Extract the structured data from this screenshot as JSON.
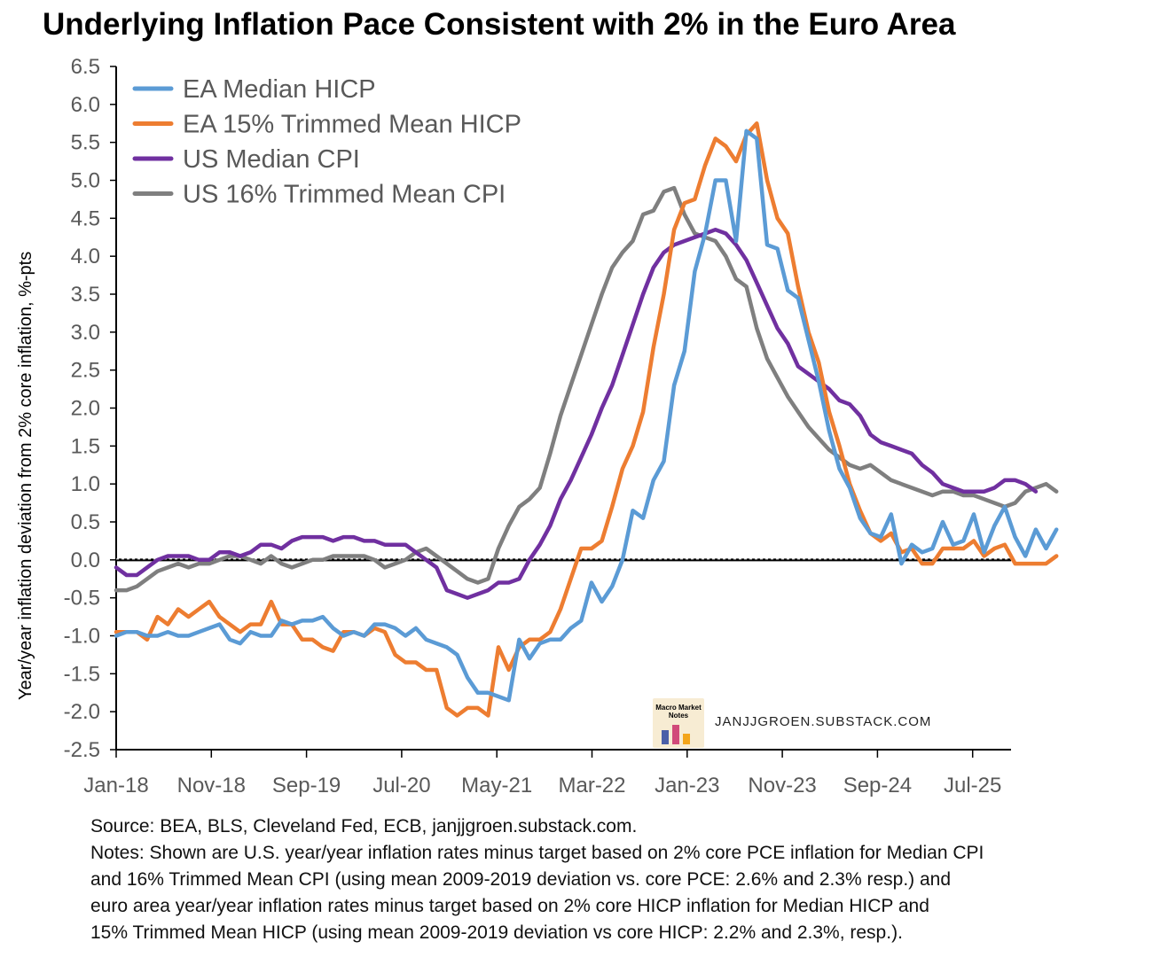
{
  "title": "Underlying Inflation Pace Consistent with 2% in the Euro Area",
  "watermark": {
    "badge_text": "Macro Market Notes",
    "site": "JANJJGROEN.SUBSTACK.COM"
  },
  "notes": {
    "source": "Source: BEA, BLS, Cleveland Fed, ECB, janjjgroen.substack.com.",
    "line1": "Notes: Shown are U.S. year/year inflation rates minus target based on 2% core PCE inflation for Median CPI",
    "line2": "and 16% Trimmed Mean CPI (using mean 2009-2019 deviation vs. core PCE: 2.6% and 2.3% resp.) and",
    "line3": "euro area year/year inflation rates minus target based on 2% core HICP inflation for Median HICP and",
    "line4": "15% Trimmed Mean HICP (using mean 2009-2019 deviation vs core HICP: 2.2% and 2.3%, resp.)."
  },
  "chart_data": {
    "type": "line",
    "title": "Underlying Inflation Pace Consistent with 2% in the Euro Area",
    "xlabel": "",
    "ylabel": "Year/year inflation deviation from 2% core inflation, %-pts",
    "ylim": [
      -2.5,
      6.5
    ],
    "y_ticks": [
      "6.5",
      "6.0",
      "5.5",
      "5.0",
      "4.5",
      "4.0",
      "3.5",
      "3.0",
      "2.5",
      "2.0",
      "1.5",
      "1.0",
      "0.5",
      "0.0",
      "-0.5",
      "-1.0",
      "-1.5",
      "-2.0",
      "-2.5"
    ],
    "x_ticks": [
      "Jan-18",
      "Nov-18",
      "Sep-19",
      "Jul-20",
      "May-21",
      "Mar-22",
      "Jan-23",
      "Nov-23",
      "Sep-24",
      "Jul-25"
    ],
    "x_start": "Jan-18",
    "x_end": "Oct-25",
    "grid": false,
    "legend_position": "top-left",
    "zero_line": true,
    "series": [
      {
        "name": "EA Median HICP",
        "color": "#5b9bd5",
        "values": [
          -1.0,
          -0.95,
          -0.95,
          -1.0,
          -1.0,
          -0.95,
          -1.0,
          -1.0,
          -0.95,
          -0.9,
          -0.85,
          -1.05,
          -1.1,
          -0.95,
          -1.0,
          -1.0,
          -0.8,
          -0.85,
          -0.8,
          -0.8,
          -0.75,
          -0.9,
          -1.0,
          -0.95,
          -1.0,
          -0.85,
          -0.85,
          -0.9,
          -1.0,
          -0.9,
          -1.05,
          -1.1,
          -1.15,
          -1.25,
          -1.55,
          -1.75,
          -1.75,
          -1.8,
          -1.85,
          -1.05,
          -1.3,
          -1.1,
          -1.05,
          -1.05,
          -0.9,
          -0.8,
          -0.3,
          -0.55,
          -0.35,
          0.0,
          0.65,
          0.55,
          1.05,
          1.3,
          2.3,
          2.75,
          3.8,
          4.3,
          5.0,
          5.0,
          4.2,
          5.65,
          5.55,
          4.15,
          4.1,
          3.55,
          3.45,
          2.9,
          2.35,
          1.7,
          1.2,
          0.95,
          0.55,
          0.35,
          0.3,
          0.6,
          -0.05,
          0.2,
          0.1,
          0.15,
          0.5,
          0.2,
          0.25,
          0.6,
          0.1,
          0.45,
          0.7,
          0.3,
          0.05,
          0.4,
          0.15,
          0.4
        ]
      },
      {
        "name": "EA 15% Trimmed Mean HICP",
        "color": "#ed7d31",
        "values": [
          -0.95,
          -0.95,
          -0.95,
          -1.05,
          -0.75,
          -0.85,
          -0.65,
          -0.75,
          -0.65,
          -0.55,
          -0.75,
          -0.85,
          -0.95,
          -0.85,
          -0.85,
          -0.55,
          -0.85,
          -0.85,
          -1.05,
          -1.05,
          -1.15,
          -1.2,
          -0.95,
          -0.95,
          -1.0,
          -0.9,
          -0.95,
          -1.25,
          -1.35,
          -1.35,
          -1.45,
          -1.45,
          -1.95,
          -2.05,
          -1.95,
          -1.95,
          -2.05,
          -1.15,
          -1.45,
          -1.15,
          -1.05,
          -1.05,
          -0.95,
          -0.65,
          -0.25,
          0.15,
          0.15,
          0.25,
          0.7,
          1.2,
          1.5,
          1.95,
          2.8,
          3.5,
          4.35,
          4.7,
          4.75,
          5.2,
          5.55,
          5.45,
          5.25,
          5.6,
          5.75,
          5.0,
          4.5,
          4.3,
          3.6,
          3.0,
          2.6,
          1.95,
          1.5,
          1.0,
          0.65,
          0.35,
          0.25,
          0.35,
          0.1,
          0.15,
          -0.05,
          -0.05,
          0.15,
          0.15,
          0.15,
          0.25,
          0.05,
          0.15,
          0.2,
          -0.05,
          -0.05,
          -0.05,
          -0.05,
          0.05
        ]
      },
      {
        "name": "US Median CPI",
        "color": "#7030a0",
        "values": [
          -0.1,
          -0.2,
          -0.2,
          -0.1,
          0.0,
          0.05,
          0.05,
          0.05,
          0.0,
          0.0,
          0.1,
          0.1,
          0.05,
          0.1,
          0.2,
          0.2,
          0.15,
          0.25,
          0.3,
          0.3,
          0.3,
          0.25,
          0.3,
          0.3,
          0.25,
          0.25,
          0.2,
          0.2,
          0.2,
          0.1,
          0.0,
          -0.1,
          -0.4,
          -0.45,
          -0.5,
          -0.45,
          -0.4,
          -0.3,
          -0.3,
          -0.25,
          0.0,
          0.2,
          0.45,
          0.8,
          1.05,
          1.35,
          1.65,
          2.0,
          2.3,
          2.7,
          3.1,
          3.5,
          3.85,
          4.05,
          4.15,
          4.2,
          4.25,
          4.3,
          4.35,
          4.3,
          4.15,
          3.95,
          3.65,
          3.35,
          3.05,
          2.85,
          2.55,
          2.45,
          2.35,
          2.25,
          2.1,
          2.05,
          1.9,
          1.65,
          1.55,
          1.5,
          1.45,
          1.4,
          1.25,
          1.15,
          1.0,
          0.95,
          0.9,
          0.9,
          0.9,
          0.95,
          1.05,
          1.05,
          1.0,
          0.9
        ]
      },
      {
        "name": "US 16% Trimmed Mean CPI",
        "color": "#7f7f7f",
        "values": [
          -0.4,
          -0.4,
          -0.35,
          -0.25,
          -0.15,
          -0.1,
          -0.05,
          -0.1,
          -0.05,
          -0.05,
          0.0,
          0.05,
          0.05,
          0.0,
          -0.05,
          0.05,
          -0.05,
          -0.1,
          -0.05,
          0.0,
          0.0,
          0.05,
          0.05,
          0.05,
          0.05,
          0.0,
          -0.1,
          -0.05,
          0.0,
          0.1,
          0.15,
          0.05,
          -0.05,
          -0.15,
          -0.25,
          -0.3,
          -0.25,
          0.15,
          0.45,
          0.7,
          0.8,
          0.95,
          1.4,
          1.9,
          2.3,
          2.7,
          3.1,
          3.5,
          3.85,
          4.05,
          4.2,
          4.55,
          4.6,
          4.85,
          4.9,
          4.55,
          4.3,
          4.25,
          4.2,
          4.0,
          3.7,
          3.6,
          3.05,
          2.65,
          2.4,
          2.15,
          1.95,
          1.75,
          1.6,
          1.45,
          1.35,
          1.25,
          1.2,
          1.25,
          1.15,
          1.05,
          1.0,
          0.95,
          0.9,
          0.85,
          0.9,
          0.9,
          0.85,
          0.85,
          0.8,
          0.75,
          0.7,
          0.75,
          0.9,
          0.95,
          1.0,
          0.9
        ]
      }
    ]
  }
}
